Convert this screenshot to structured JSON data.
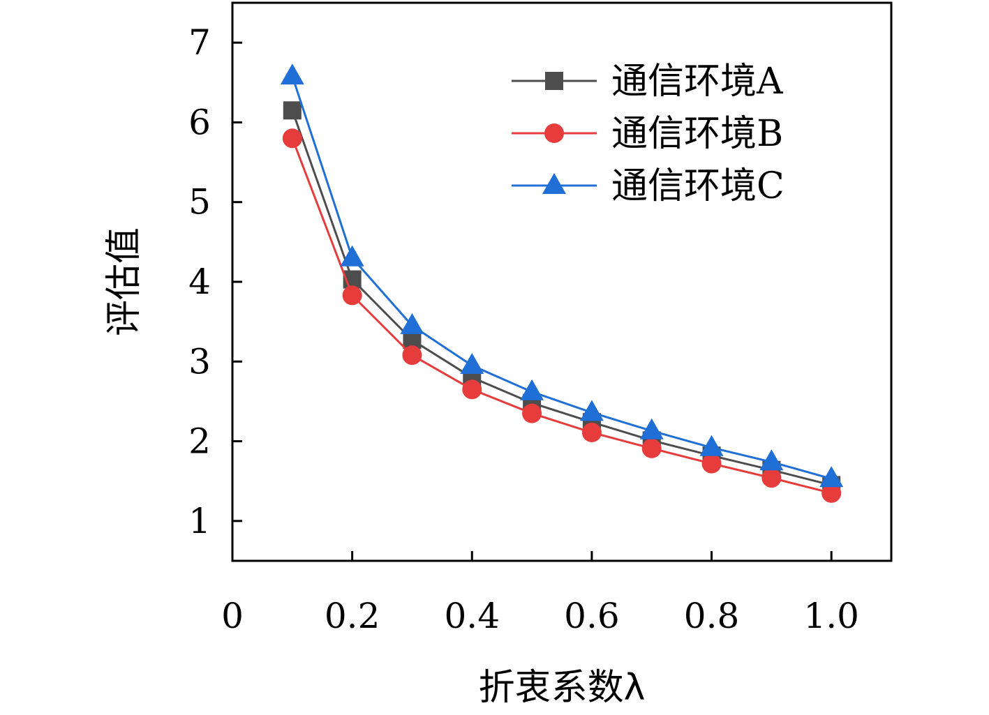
{
  "chart_data": {
    "type": "line",
    "xlabel": "折衷系数λ",
    "ylabel": "评估值",
    "xlim": [
      0,
      1.1
    ],
    "ylim": [
      0.5,
      7.5
    ],
    "x_ticks": [
      "0",
      "0.2",
      "0.4",
      "0.6",
      "0.8",
      "1.0"
    ],
    "y_ticks": [
      "1",
      "2",
      "3",
      "4",
      "5",
      "6",
      "7"
    ],
    "grid": false,
    "legend": "top-right",
    "x": [
      0.1,
      0.2,
      0.3,
      0.4,
      0.5,
      0.6,
      0.7,
      0.8,
      0.9,
      1.0
    ],
    "series": [
      {
        "name": "通信环境A",
        "marker": "square",
        "color": "#4d4d4d",
        "values": [
          6.15,
          4.03,
          3.27,
          2.8,
          2.48,
          2.24,
          2.01,
          1.82,
          1.64,
          1.45
        ]
      },
      {
        "name": "通信环境B",
        "marker": "circle",
        "color": "#e63c3c",
        "values": [
          5.8,
          3.83,
          3.08,
          2.65,
          2.35,
          2.11,
          1.91,
          1.72,
          1.54,
          1.35
        ]
      },
      {
        "name": "通信环境C",
        "marker": "triangle",
        "color": "#1f6fd6",
        "values": [
          6.58,
          4.3,
          3.45,
          2.95,
          2.62,
          2.36,
          2.13,
          1.92,
          1.74,
          1.53
        ]
      }
    ]
  }
}
